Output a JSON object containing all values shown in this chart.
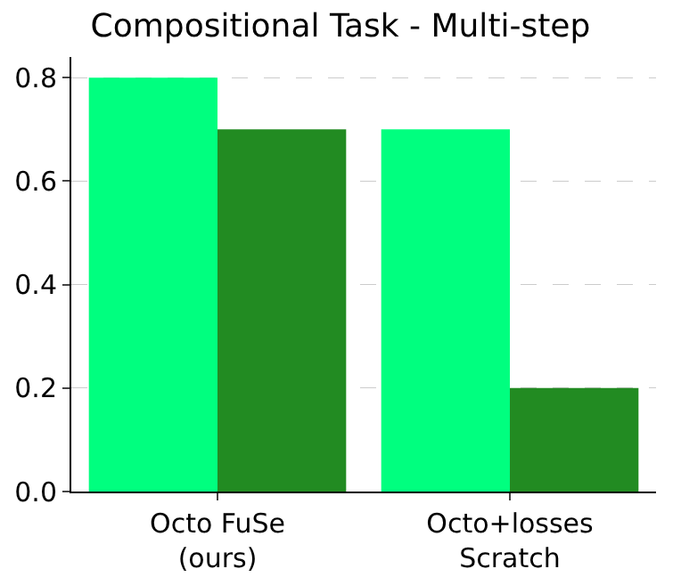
{
  "chart_data": {
    "type": "bar",
    "title": "Compositional Task - Multi-step",
    "categories": [
      "Octo FuSe\n(ours)",
      "Octo+losses\nScratch"
    ],
    "series": [
      {
        "color": "#00ff7f",
        "values": [
          0.8,
          0.7
        ]
      },
      {
        "color": "#228b22",
        "values": [
          0.7,
          0.2
        ]
      }
    ],
    "ylim": [
      0,
      0.84
    ],
    "yticks": [
      {
        "value": 0,
        "label": "0.0"
      },
      {
        "value": 0.2,
        "label": "0.2"
      },
      {
        "value": 0.4,
        "label": "0.4"
      },
      {
        "value": 0.6,
        "label": "0.6"
      },
      {
        "value": 0.8,
        "label": "0.8"
      }
    ],
    "grid": "y"
  }
}
